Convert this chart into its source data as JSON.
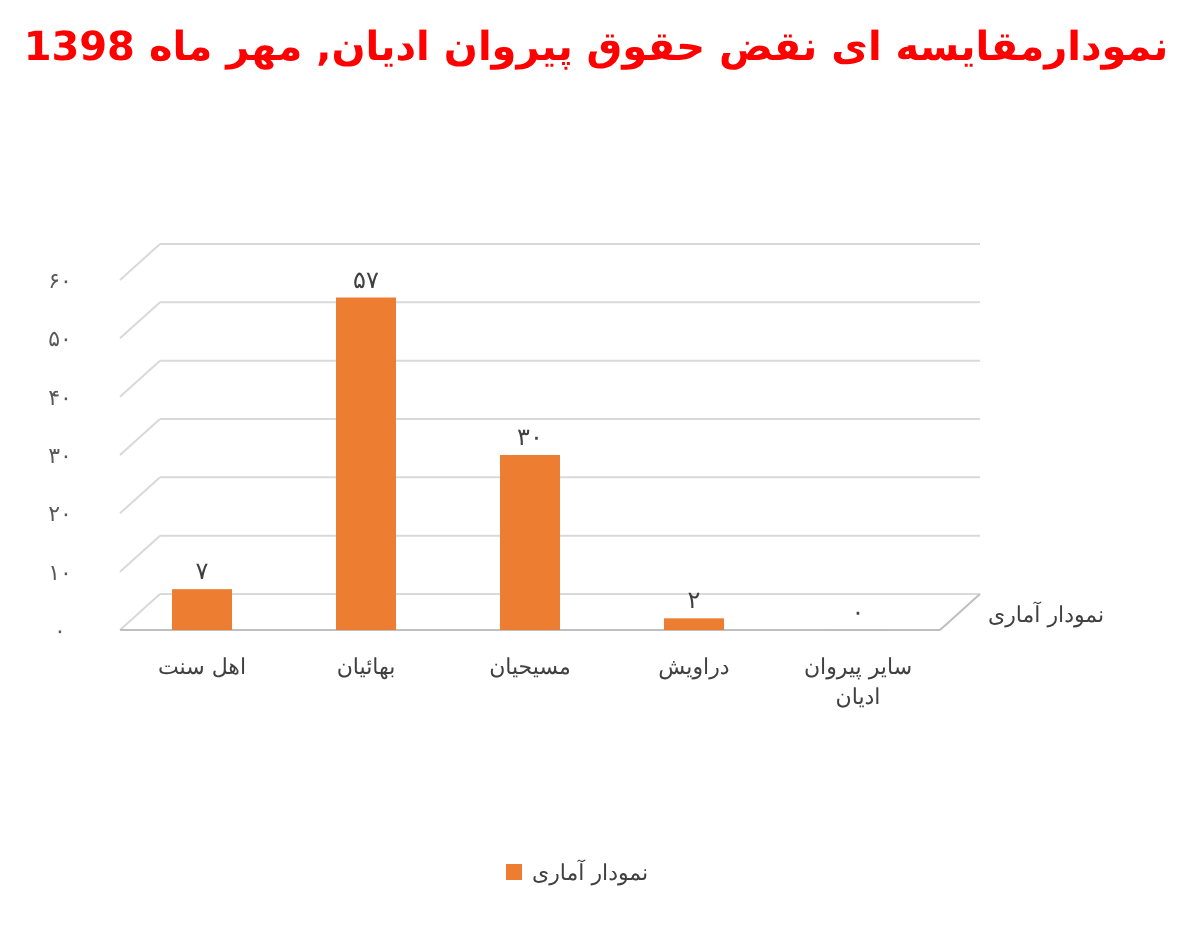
{
  "chart_data": {
    "type": "bar",
    "title": "نمودارمقایسه ای نقض حقوق پیروان ادیان, مهر ماه 1398",
    "categories": [
      "اهل سنت",
      "بهائیان",
      "مسیحیان",
      "دراویش",
      "سایر پیروان ادیان"
    ],
    "series": [
      {
        "name": "نمودار آماری",
        "color": "#ed7d31",
        "values": [
          7,
          57,
          30,
          2,
          0
        ],
        "value_labels": [
          "۷",
          "۵۷",
          "۳۰",
          "۲",
          "۰"
        ]
      }
    ],
    "ylim": [
      0,
      60
    ],
    "yticks": [
      {
        "value": 0,
        "label": "۰"
      },
      {
        "value": 10,
        "label": "۱۰"
      },
      {
        "value": 20,
        "label": "۲۰"
      },
      {
        "value": 30,
        "label": "۳۰"
      },
      {
        "value": 40,
        "label": "۴۰"
      },
      {
        "value": 50,
        "label": "۵۰"
      },
      {
        "value": 60,
        "label": "۶۰"
      }
    ],
    "grid": "y",
    "legend": "bottom"
  }
}
